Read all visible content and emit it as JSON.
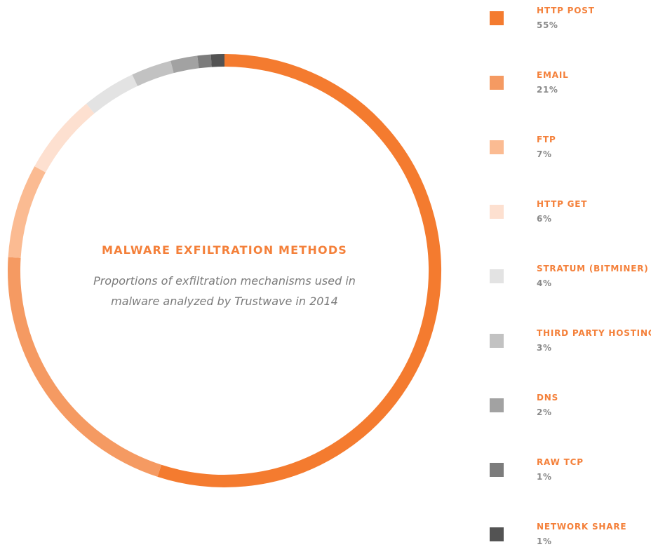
{
  "chart_data": {
    "type": "pie",
    "style": "donut",
    "title": "MALWARE EXFILTRATION METHODS",
    "subtitle": "Proportions of exfiltration mechanisms used in malware analyzed by Trustwave in 2014",
    "legend_position": "right",
    "slices": [
      {
        "label": "HTTP POST",
        "value": 55,
        "display": "55%",
        "color": "#f47b2f"
      },
      {
        "label": "EMAIL",
        "value": 21,
        "display": "21%",
        "color": "#f59a62"
      },
      {
        "label": "FTP",
        "value": 7,
        "display": "7%",
        "color": "#fbbb92"
      },
      {
        "label": "HTTP GET",
        "value": 6,
        "display": "6%",
        "color": "#fde0d0"
      },
      {
        "label": "STRATUM (BITMINER)",
        "value": 4,
        "display": "4%",
        "color": "#e3e3e3"
      },
      {
        "label": "THIRD PARTY HOSTING",
        "value": 3,
        "display": "3%",
        "color": "#c2c2c2"
      },
      {
        "label": "DNS",
        "value": 2,
        "display": "2%",
        "color": "#a2a2a2"
      },
      {
        "label": "RAW TCP",
        "value": 1,
        "display": "1%",
        "color": "#7c7c7c"
      },
      {
        "label": "NETWORK SHARE",
        "value": 1,
        "display": "1%",
        "color": "#535353"
      }
    ]
  }
}
